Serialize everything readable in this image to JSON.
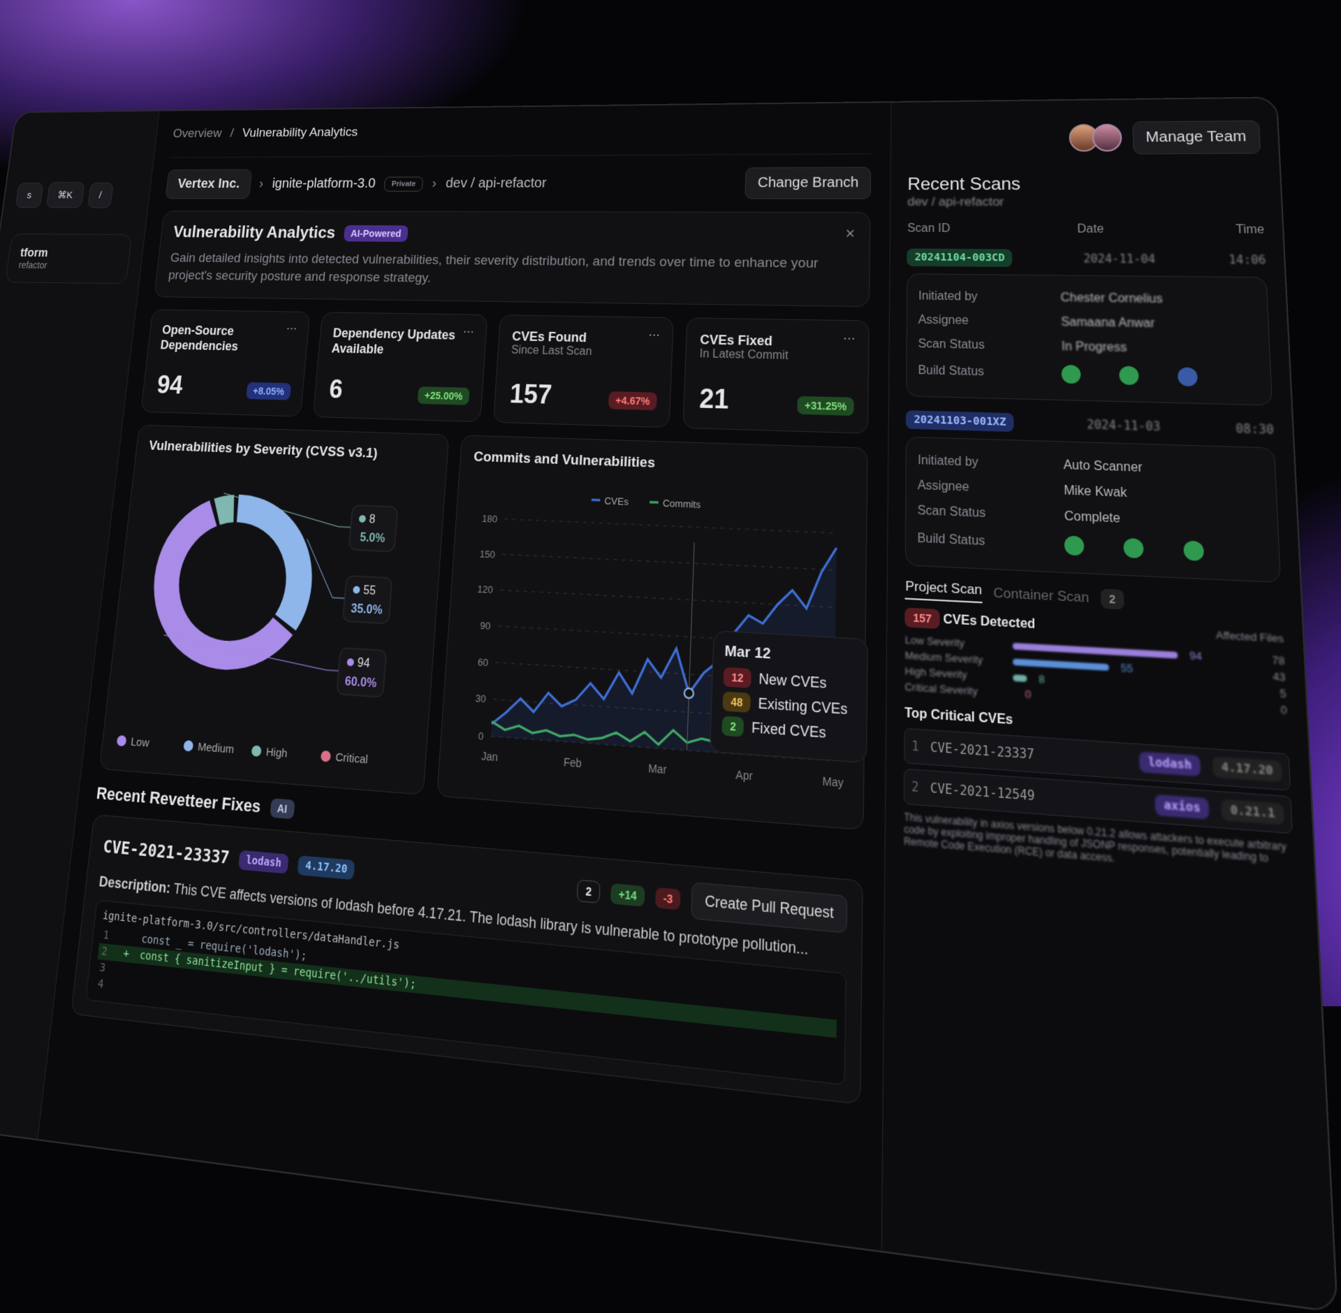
{
  "sidebar": {
    "search_hint": "s",
    "shortcut": "⌘K",
    "slash": "/",
    "project": "tform",
    "branch": "refactor"
  },
  "breadcrumb": {
    "root": "Overview",
    "current": "Vulnerability Analytics"
  },
  "header": {
    "manage_team": "Manage Team"
  },
  "context": {
    "org": "Vertex Inc.",
    "repo": "ignite-platform-3.0",
    "visibility": "Private",
    "branch": "dev / api-refactor",
    "change_branch": "Change Branch"
  },
  "intro": {
    "title": "Vulnerability Analytics",
    "badge": "AI-Powered",
    "text": "Gain detailed insights into detected vulnerabilities, their severity distribution, and trends over time to enhance your project's security posture and response strategy."
  },
  "stats": [
    {
      "title": "Open-Source Dependencies",
      "value": 94,
      "change": "+8.05%"
    },
    {
      "title": "Dependency Updates Available",
      "value": 6,
      "change": "+25.00%"
    },
    {
      "title": "CVEs Found",
      "subtitle": "Since Last Scan",
      "value": 157,
      "change": "+4.67%"
    },
    {
      "title": "CVEs Fixed",
      "subtitle": "In Latest Commit",
      "value": 21,
      "change": "+31.25%"
    }
  ],
  "severity_chart": {
    "title": "Vulnerabilities by Severity (CVSS v3.1)",
    "segments": [
      {
        "value": 8,
        "share": "5.0%",
        "color": "#7fb8b0"
      },
      {
        "value": 55,
        "share": "35.0%",
        "color": "#8fb6ea"
      },
      {
        "value": 94,
        "share": "60.0%",
        "color": "#a98be8"
      }
    ],
    "legend": [
      {
        "name": "Low",
        "color": "#a98be8"
      },
      {
        "name": "Medium",
        "color": "#8fb6ea"
      },
      {
        "name": "High",
        "color": "#7fb8b0"
      },
      {
        "name": "Critical",
        "color": "#d9708a"
      }
    ]
  },
  "trend_chart": {
    "title": "Commits and Vulnerabilities",
    "ylim": [
      0,
      180
    ],
    "yticks": [
      0,
      30,
      60,
      90,
      120,
      150,
      180
    ],
    "xticks": [
      "Jan",
      "Feb",
      "Mar",
      "Apr",
      "May"
    ],
    "series": [
      {
        "name": "CVEs",
        "color": "#3f6fd6",
        "values": [
          10,
          20,
          32,
          22,
          38,
          28,
          34,
          48,
          36,
          58,
          42,
          70,
          56,
          80,
          45,
          62,
          72,
          95,
          110,
          104,
          120,
          132,
          118,
          148,
          168
        ]
      },
      {
        "name": "Commits",
        "color": "#3fa866",
        "values": [
          12,
          6,
          10,
          5,
          8,
          4,
          6,
          3,
          5,
          10,
          4,
          12,
          3,
          15,
          6,
          10,
          8,
          14,
          10,
          12,
          9,
          15,
          11,
          13,
          10
        ]
      }
    ],
    "tooltip": {
      "date": "Mar 12",
      "items": [
        {
          "value": 12,
          "label": "New CVEs"
        },
        {
          "value": 48,
          "label": "Existing CVEs"
        },
        {
          "value": 2,
          "label": "Fixed CVEs"
        }
      ]
    }
  },
  "fixes": {
    "title": "Recent Revetteer Fixes",
    "badge": "AI",
    "cve": "CVE-2021-23337",
    "package": "lodash",
    "version": "4.17.20",
    "files": 2,
    "additions": "+14",
    "deletions": "-3",
    "button": "Create Pull Request",
    "description_label": "Description:",
    "description": "This CVE affects versions of lodash before 4.17.21. The lodash library is vulnerable to prototype pollution...",
    "file_path": "ignite-platform-3.0/src/controllers/dataHandler.js",
    "code": [
      {
        "num": 1,
        "marker": "",
        "text": "const _ = require('lodash');"
      },
      {
        "num": 2,
        "marker": "+",
        "text": "const { sanitizeInput } = require('../utils');"
      },
      {
        "num": 3,
        "marker": "",
        "text": ""
      },
      {
        "num": 4,
        "marker": "",
        "text": ""
      }
    ]
  },
  "scans": {
    "title": "Recent Scans",
    "branch": "dev / api-refactor",
    "columns": [
      "Scan ID",
      "Date",
      "Time"
    ],
    "items": [
      {
        "id": "20241104-003CD",
        "date": "2024-11-04",
        "time": "14:06",
        "rows": [
          {
            "label": "Initiated by",
            "value": "Chester Cornelius"
          },
          {
            "label": "Assignee",
            "value": "Samaana Anwar"
          },
          {
            "label": "Scan Status",
            "value": "In Progress"
          },
          {
            "label": "Build Status",
            "value": ""
          }
        ]
      },
      {
        "id": "20241103-001XZ",
        "date": "2024-11-03",
        "time": "08:30",
        "rows": [
          {
            "label": "Initiated by",
            "value": "Auto Scanner"
          },
          {
            "label": "Assignee",
            "value": "Mike Kwak"
          },
          {
            "label": "Scan Status",
            "value": "Complete"
          },
          {
            "label": "Build Status",
            "value": ""
          }
        ]
      }
    ],
    "tabs": [
      "Project Scan",
      "Container Scan"
    ],
    "container_count": 2,
    "detected": 157,
    "detected_label": "CVEs Detected",
    "files_label": "Affected Files",
    "severities": [
      {
        "name": "Low Severity",
        "value": 94,
        "files": 78,
        "color": "#9a7fdc"
      },
      {
        "name": "Medium Severity",
        "value": 55,
        "files": 43,
        "color": "#5b8fd8"
      },
      {
        "name": "High Severity",
        "value": 8,
        "files": 5,
        "color": "#6fb0a8"
      },
      {
        "name": "Critical Severity",
        "value": 0,
        "files": 0,
        "color": "#d9708a"
      }
    ],
    "top_title": "Top Critical CVEs",
    "top": [
      {
        "num": 1,
        "id": "CVE-2021-23337",
        "package": "lodash",
        "version": "4.17.20"
      },
      {
        "num": 2,
        "id": "CVE-2021-12549",
        "package": "axios",
        "version": "0.21.1"
      }
    ],
    "top_note": "This vulnerability in axios versions below 0.21.2 allows attackers to execute arbitrary code by exploiting improper handling of JSONP responses, potentially leading to Remote Code Execution (RCE) or data access."
  }
}
